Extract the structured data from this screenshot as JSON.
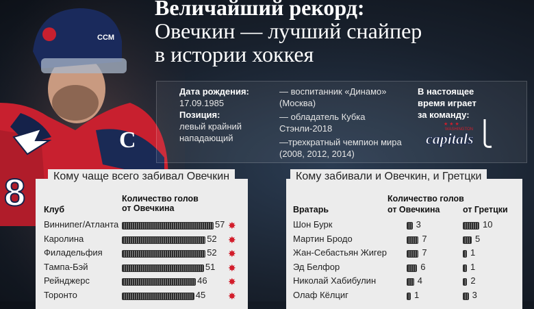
{
  "title": {
    "line1": "Величайший рекорд:",
    "line2": "Овечкин — лучший снайпер",
    "line3": "в истории хоккея"
  },
  "bio": {
    "birth_label": "Дата рождения:",
    "birth_value": "17.09.1985",
    "position_label": "Позиция:",
    "position_value_1": "левый крайний",
    "position_value_2": "нападающий"
  },
  "achievements": [
    "— воспитанник «Динамо» (Москва)",
    "— обладатель Кубка Стэнли-2018",
    "—трехкратный чемпион мира (2008, 2012, 2014)"
  ],
  "team": {
    "label_1": "В настоящее",
    "label_2": "время играет",
    "label_3": "за команду:",
    "logo_text": "capitals",
    "logo_subtext": "WASHINGTON"
  },
  "colors": {
    "accent_red": "#d21d2b",
    "panel_bg": "#ececec"
  },
  "left_panel": {
    "title": "Кому чаще всего забивал Овечкин",
    "col_club": "Клуб",
    "col_goals_1": "Количество голов",
    "col_goals_2": "от Овечкина",
    "rows": [
      {
        "club": "Виннипег/Атланта",
        "goals": 57
      },
      {
        "club": "Каролина",
        "goals": 52
      },
      {
        "club": "Филадельфия",
        "goals": 52
      },
      {
        "club": "Тампа-Бэй",
        "goals": 51
      },
      {
        "club": "Рейнджерс",
        "goals": 46
      },
      {
        "club": "Торонто",
        "goals": 45
      }
    ]
  },
  "right_panel": {
    "title": "Кому забивали и Овечкин, и Гретцки",
    "col_goalie": "Вратарь",
    "col_goals": "Количество голов",
    "col_ovechkin": "от Овечкина",
    "col_gretzky": "от Гретцки",
    "rows": [
      {
        "goalie": "Шон Бурк",
        "ovechkin": 3,
        "gretzky": 10
      },
      {
        "goalie": "Мартин Бродо",
        "ovechkin": 7,
        "gretzky": 5
      },
      {
        "goalie": "Жан-Себастьян Жигер",
        "ovechkin": 7,
        "gretzky": 1
      },
      {
        "goalie": "Эд Белфор",
        "ovechkin": 6,
        "gretzky": 1
      },
      {
        "goalie": "Николай Хабибулин",
        "ovechkin": 4,
        "gretzky": 2
      },
      {
        "goalie": "Олаф Кёлциг",
        "ovechkin": 1,
        "gretzky": 3
      }
    ]
  }
}
